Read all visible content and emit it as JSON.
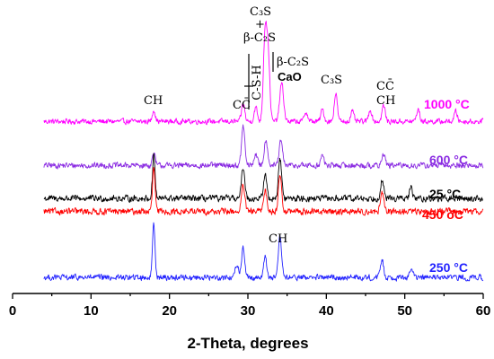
{
  "chart_data": {
    "type": "line",
    "xlabel": "2-Theta, degrees",
    "xlim": [
      0,
      60
    ],
    "xticks": [
      0,
      10,
      20,
      30,
      40,
      50,
      60
    ],
    "yticks_shown": false,
    "series": [
      {
        "name": "1000 °C",
        "color": "#ff00ff",
        "x_start": 4,
        "x_end": 60,
        "baseline": 8.6,
        "noise": 0.18,
        "peaks": [
          {
            "x": 18.0,
            "h": 0.6,
            "w": 0.18
          },
          {
            "x": 29.4,
            "h": 0.9,
            "w": 0.2
          },
          {
            "x": 31.0,
            "h": 0.7,
            "w": 0.2
          },
          {
            "x": 32.2,
            "h": 4.5,
            "w": 0.22
          },
          {
            "x": 32.6,
            "h": 3.0,
            "w": 0.2
          },
          {
            "x": 34.3,
            "h": 1.9,
            "w": 0.25
          },
          {
            "x": 37.4,
            "h": 0.5,
            "w": 0.2
          },
          {
            "x": 39.5,
            "h": 0.6,
            "w": 0.2
          },
          {
            "x": 41.2,
            "h": 1.4,
            "w": 0.2
          },
          {
            "x": 43.3,
            "h": 0.5,
            "w": 0.2
          },
          {
            "x": 45.6,
            "h": 0.6,
            "w": 0.2
          },
          {
            "x": 47.3,
            "h": 0.8,
            "w": 0.2
          },
          {
            "x": 51.7,
            "h": 0.6,
            "w": 0.2
          },
          {
            "x": 56.5,
            "h": 0.5,
            "w": 0.2
          }
        ]
      },
      {
        "name": "600 °C",
        "color": "#8a2be2",
        "x_start": 4,
        "x_end": 60,
        "baseline": 6.4,
        "noise": 0.2,
        "peaks": [
          {
            "x": 18.0,
            "h": 0.6,
            "w": 0.18
          },
          {
            "x": 29.4,
            "h": 2.0,
            "w": 0.2
          },
          {
            "x": 31.0,
            "h": 0.6,
            "w": 0.2
          },
          {
            "x": 32.3,
            "h": 1.3,
            "w": 0.22
          },
          {
            "x": 34.2,
            "h": 1.2,
            "w": 0.22
          },
          {
            "x": 39.5,
            "h": 0.5,
            "w": 0.2
          },
          {
            "x": 47.3,
            "h": 0.6,
            "w": 0.2
          }
        ]
      },
      {
        "name": "25 °C",
        "color": "#000000",
        "x_start": 4,
        "x_end": 60,
        "baseline": 4.75,
        "noise": 0.22,
        "peaks": [
          {
            "x": 18.0,
            "h": 2.2,
            "w": 0.16
          },
          {
            "x": 29.4,
            "h": 1.6,
            "w": 0.2
          },
          {
            "x": 32.2,
            "h": 1.2,
            "w": 0.2
          },
          {
            "x": 34.1,
            "h": 2.0,
            "w": 0.2
          },
          {
            "x": 47.1,
            "h": 0.9,
            "w": 0.2
          },
          {
            "x": 50.8,
            "h": 0.5,
            "w": 0.2
          }
        ]
      },
      {
        "name": "450 oC",
        "color": "#ff0000",
        "x_start": 4,
        "x_end": 60,
        "baseline": 4.1,
        "noise": 0.22,
        "peaks": [
          {
            "x": 18.0,
            "h": 2.2,
            "w": 0.16
          },
          {
            "x": 29.4,
            "h": 1.3,
            "w": 0.2
          },
          {
            "x": 32.2,
            "h": 1.1,
            "w": 0.2
          },
          {
            "x": 34.1,
            "h": 1.9,
            "w": 0.2
          },
          {
            "x": 47.1,
            "h": 0.9,
            "w": 0.2
          }
        ]
      },
      {
        "name": "250 °C",
        "color": "#2323ff",
        "x_start": 4,
        "x_end": 60,
        "baseline": 0.8,
        "noise": 0.2,
        "peaks": [
          {
            "x": 18.0,
            "h": 2.8,
            "w": 0.16
          },
          {
            "x": 28.6,
            "h": 0.7,
            "w": 0.2
          },
          {
            "x": 29.4,
            "h": 1.5,
            "w": 0.2
          },
          {
            "x": 32.2,
            "h": 1.0,
            "w": 0.2
          },
          {
            "x": 34.1,
            "h": 2.0,
            "w": 0.2
          },
          {
            "x": 47.1,
            "h": 0.9,
            "w": 0.2
          },
          {
            "x": 50.8,
            "h": 0.5,
            "w": 0.2
          }
        ]
      }
    ],
    "annotations": [
      "CH",
      "CC̄",
      "C-S-H",
      "C₃S",
      "β-C₂S",
      "β-C₂S",
      "CaO",
      "C₃S",
      "CC̄",
      "CH",
      "CH"
    ]
  }
}
